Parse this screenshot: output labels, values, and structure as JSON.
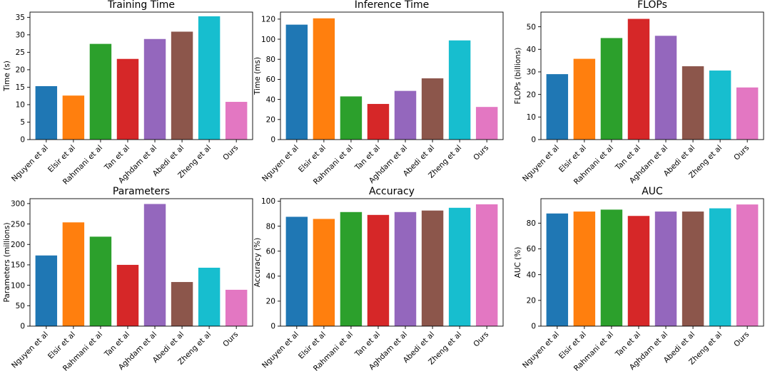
{
  "chart_data": [
    {
      "type": "bar",
      "title": "Training Time",
      "xlabel": "",
      "ylabel": "Time (s)",
      "categories": [
        "Nguyen et al",
        "Elsir et al",
        "Rahmani et al",
        "Tan et al",
        "Aghdam et al",
        "Abedi et al",
        "Zheng et al",
        "Ours"
      ],
      "values": [
        15.3,
        12.6,
        27.4,
        23.1,
        28.8,
        30.9,
        35.3,
        10.8
      ],
      "ylim": [
        0,
        36.5
      ],
      "yticks": [
        0,
        5,
        10,
        15,
        20,
        25,
        30,
        35
      ],
      "colors": [
        "#1f77b4",
        "#ff7f0e",
        "#2ca02c",
        "#d62728",
        "#9467bd",
        "#8c564b",
        "#17becf",
        "#e377c2"
      ]
    },
    {
      "type": "bar",
      "title": "Inference Time",
      "xlabel": "",
      "ylabel": "Time (ms)",
      "categories": [
        "Nguyen et al",
        "Elsir et al",
        "Rahmani et al",
        "Tan et al",
        "Aghdam et al",
        "Abedi et al",
        "Zheng et al",
        "Ours"
      ],
      "values": [
        114.5,
        120.8,
        43.0,
        35.5,
        48.5,
        61.0,
        98.8,
        32.5
      ],
      "ylim": [
        0,
        127
      ],
      "yticks": [
        0,
        20,
        40,
        60,
        80,
        100,
        120
      ],
      "colors": [
        "#1f77b4",
        "#ff7f0e",
        "#2ca02c",
        "#d62728",
        "#9467bd",
        "#8c564b",
        "#17becf",
        "#e377c2"
      ]
    },
    {
      "type": "bar",
      "title": "FLOPs",
      "xlabel": "",
      "ylabel": "FLOPs (billions)",
      "categories": [
        "Nguyen et al",
        "Elsir et al",
        "Rahmani et al",
        "Tan et al",
        "Aghdam et al",
        "Abedi et al",
        "Zheng et al",
        "Ours"
      ],
      "values": [
        29.0,
        35.8,
        45.0,
        53.5,
        46.0,
        32.5,
        30.6,
        23.1
      ],
      "ylim": [
        0,
        56.5
      ],
      "yticks": [
        0,
        10,
        20,
        30,
        40,
        50
      ],
      "colors": [
        "#1f77b4",
        "#ff7f0e",
        "#2ca02c",
        "#d62728",
        "#9467bd",
        "#8c564b",
        "#17becf",
        "#e377c2"
      ]
    },
    {
      "type": "bar",
      "title": "Parameters",
      "xlabel": "",
      "ylabel": "Parameters (millions)",
      "categories": [
        "Nguyen et al",
        "Elsir et al",
        "Rahmani et al",
        "Tan et al",
        "Aghdam et al",
        "Abedi et al",
        "Zheng et al",
        "Ours"
      ],
      "values": [
        173,
        254,
        219,
        150,
        299,
        108,
        143,
        89
      ],
      "ylim": [
        0,
        312
      ],
      "yticks": [
        0,
        50,
        100,
        150,
        200,
        250,
        300
      ],
      "colors": [
        "#1f77b4",
        "#ff7f0e",
        "#2ca02c",
        "#d62728",
        "#9467bd",
        "#8c564b",
        "#17becf",
        "#e377c2"
      ]
    },
    {
      "type": "bar",
      "title": "Accuracy",
      "xlabel": "",
      "ylabel": "Accuracy (%)",
      "categories": [
        "Nguyen et al",
        "Elsir et al",
        "Rahmani et al",
        "Tan et al",
        "Aghdam et al",
        "Abedi et al",
        "Zheng et al",
        "Ours"
      ],
      "values": [
        87.5,
        85.8,
        91.3,
        89.0,
        91.3,
        92.5,
        94.7,
        97.5
      ],
      "ylim": [
        0,
        102
      ],
      "yticks": [
        0,
        20,
        40,
        60,
        80,
        100
      ],
      "colors": [
        "#1f77b4",
        "#ff7f0e",
        "#2ca02c",
        "#d62728",
        "#9467bd",
        "#8c564b",
        "#17becf",
        "#e377c2"
      ]
    },
    {
      "type": "bar",
      "title": "AUC",
      "xlabel": "",
      "ylabel": "AUC (%)",
      "categories": [
        "Nguyen et al",
        "Elsir et al",
        "Rahmani et al",
        "Tan et al",
        "Aghdam et al",
        "Abedi et al",
        "Zheng et al",
        "Ours"
      ],
      "values": [
        87.5,
        89.0,
        90.5,
        85.6,
        89.0,
        89.0,
        91.5,
        94.5
      ],
      "ylim": [
        0,
        99
      ],
      "yticks": [
        0,
        20,
        40,
        60,
        80
      ],
      "colors": [
        "#1f77b4",
        "#ff7f0e",
        "#2ca02c",
        "#d62728",
        "#9467bd",
        "#8c564b",
        "#17becf",
        "#e377c2"
      ]
    }
  ]
}
